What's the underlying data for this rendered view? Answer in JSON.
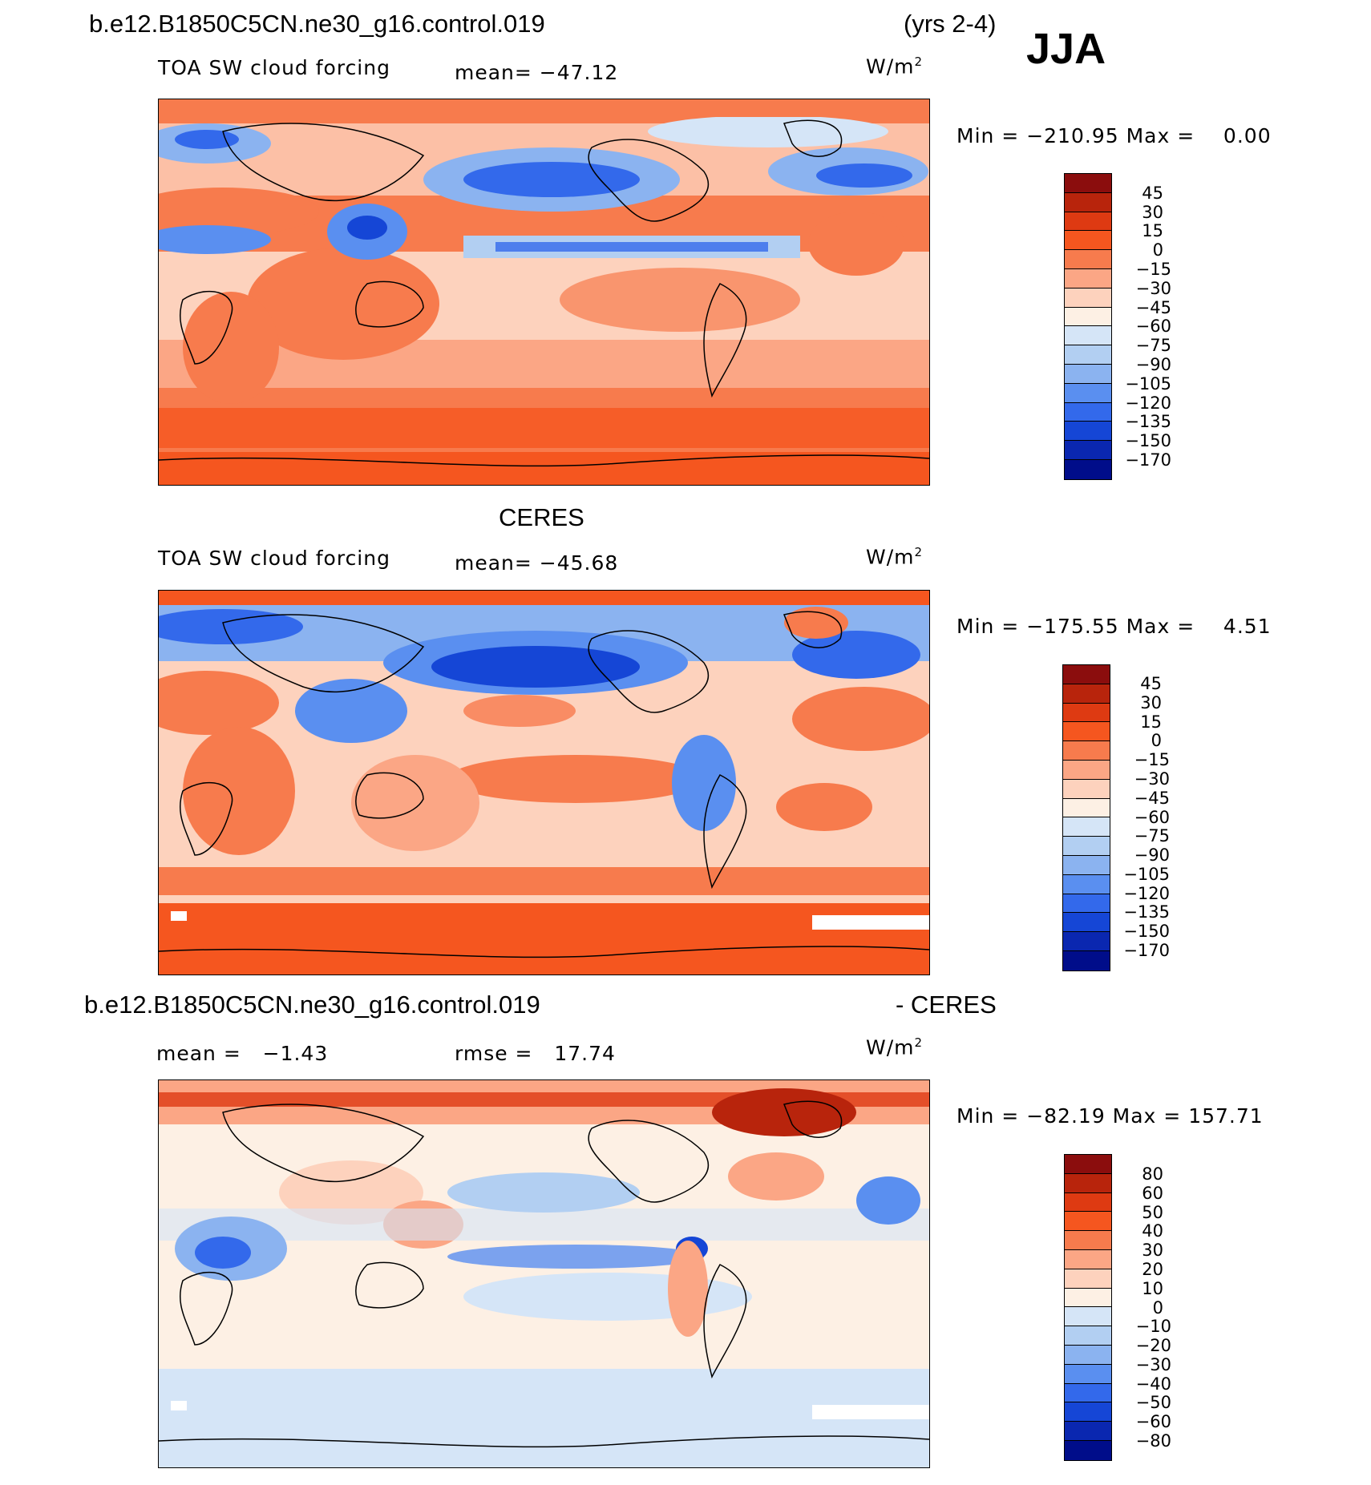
{
  "header": {
    "case_name": "b.e12.B1850C5CN.ne30_g16.control.019",
    "years": "(yrs 2-4)",
    "season": "JJA"
  },
  "panels": [
    {
      "id": "model",
      "title": "",
      "variable": "TOA SW cloud forcing",
      "stat1": "mean= −47.12",
      "stat2": "",
      "units": "W/m",
      "units_sup": "2",
      "minmax": "Min = −210.95 Max =    0.00",
      "colorbar_labels": [
        "45",
        "30",
        "15",
        "0",
        "−15",
        "−30",
        "−45",
        "−60",
        "−75",
        "−90",
        "−105",
        "−120",
        "−135",
        "−150",
        "−170"
      ],
      "colorbar_colors": [
        "#8b0d0d",
        "#b8240c",
        "#de3a12",
        "#f5561f",
        "#f77b4d",
        "#fba685",
        "#fdd2bd",
        "#fdf0e4",
        "#d5e5f7",
        "#b2cff2",
        "#8bb3f0",
        "#5a8ff0",
        "#3369eb",
        "#1546d6",
        "#0a27b0",
        "#000d8a"
      ]
    },
    {
      "id": "obs",
      "title": "CERES",
      "variable": "TOA SW cloud forcing",
      "stat1": "mean= −45.68",
      "stat2": "",
      "units": "W/m",
      "units_sup": "2",
      "minmax": "Min = −175.55 Max =    4.51",
      "colorbar_labels": [
        "45",
        "30",
        "15",
        "0",
        "−15",
        "−30",
        "−45",
        "−60",
        "−75",
        "−90",
        "−105",
        "−120",
        "−135",
        "−150",
        "−170"
      ],
      "colorbar_colors": [
        "#8b0d0d",
        "#b8240c",
        "#de3a12",
        "#f5561f",
        "#f77b4d",
        "#fba685",
        "#fdd2bd",
        "#fdf0e4",
        "#d5e5f7",
        "#b2cff2",
        "#8bb3f0",
        "#5a8ff0",
        "#3369eb",
        "#1546d6",
        "#0a27b0",
        "#000d8a"
      ]
    },
    {
      "id": "diff",
      "title_left": "b.e12.B1850C5CN.ne30_g16.control.019",
      "title_right": "- CERES",
      "stat1": "mean =   −1.43",
      "stat2": "rmse =   17.74",
      "units": "W/m",
      "units_sup": "2",
      "minmax": "Min = −82.19 Max = 157.71",
      "colorbar_labels": [
        "80",
        "60",
        "50",
        "40",
        "30",
        "20",
        "10",
        "0",
        "−10",
        "−20",
        "−30",
        "−40",
        "−50",
        "−60",
        "−80"
      ],
      "colorbar_colors": [
        "#8b0d0d",
        "#b8240c",
        "#de3a12",
        "#f5561f",
        "#f77b4d",
        "#fba685",
        "#fdd2bd",
        "#fdf0e4",
        "#d5e5f7",
        "#b2cff2",
        "#8bb3f0",
        "#5a8ff0",
        "#3369eb",
        "#1546d6",
        "#0a27b0",
        "#000d8a"
      ]
    }
  ],
  "chart_data": [
    {
      "type": "heatmap",
      "title": "b.e12.B1850C5CN.ne30_g16.control.019 (yrs 2-4) JJA",
      "variable": "TOA SW cloud forcing",
      "units": "W/m2",
      "mean": -47.12,
      "min": -210.95,
      "max": 0.0,
      "contour_levels": [
        -170,
        -150,
        -135,
        -120,
        -105,
        -90,
        -75,
        -60,
        -45,
        -30,
        -15,
        0,
        15,
        30,
        45
      ]
    },
    {
      "type": "heatmap",
      "title": "CERES",
      "variable": "TOA SW cloud forcing",
      "units": "W/m2",
      "mean": -45.68,
      "min": -175.55,
      "max": 4.51,
      "contour_levels": [
        -170,
        -150,
        -135,
        -120,
        -105,
        -90,
        -75,
        -60,
        -45,
        -30,
        -15,
        0,
        15,
        30,
        45
      ]
    },
    {
      "type": "heatmap",
      "title": "b.e12.B1850C5CN.ne30_g16.control.019 - CERES",
      "units": "W/m2",
      "mean": -1.43,
      "rmse": 17.74,
      "min": -82.19,
      "max": 157.71,
      "contour_levels": [
        -80,
        -60,
        -50,
        -40,
        -30,
        -20,
        -10,
        0,
        10,
        20,
        30,
        40,
        50,
        60,
        80
      ]
    }
  ]
}
